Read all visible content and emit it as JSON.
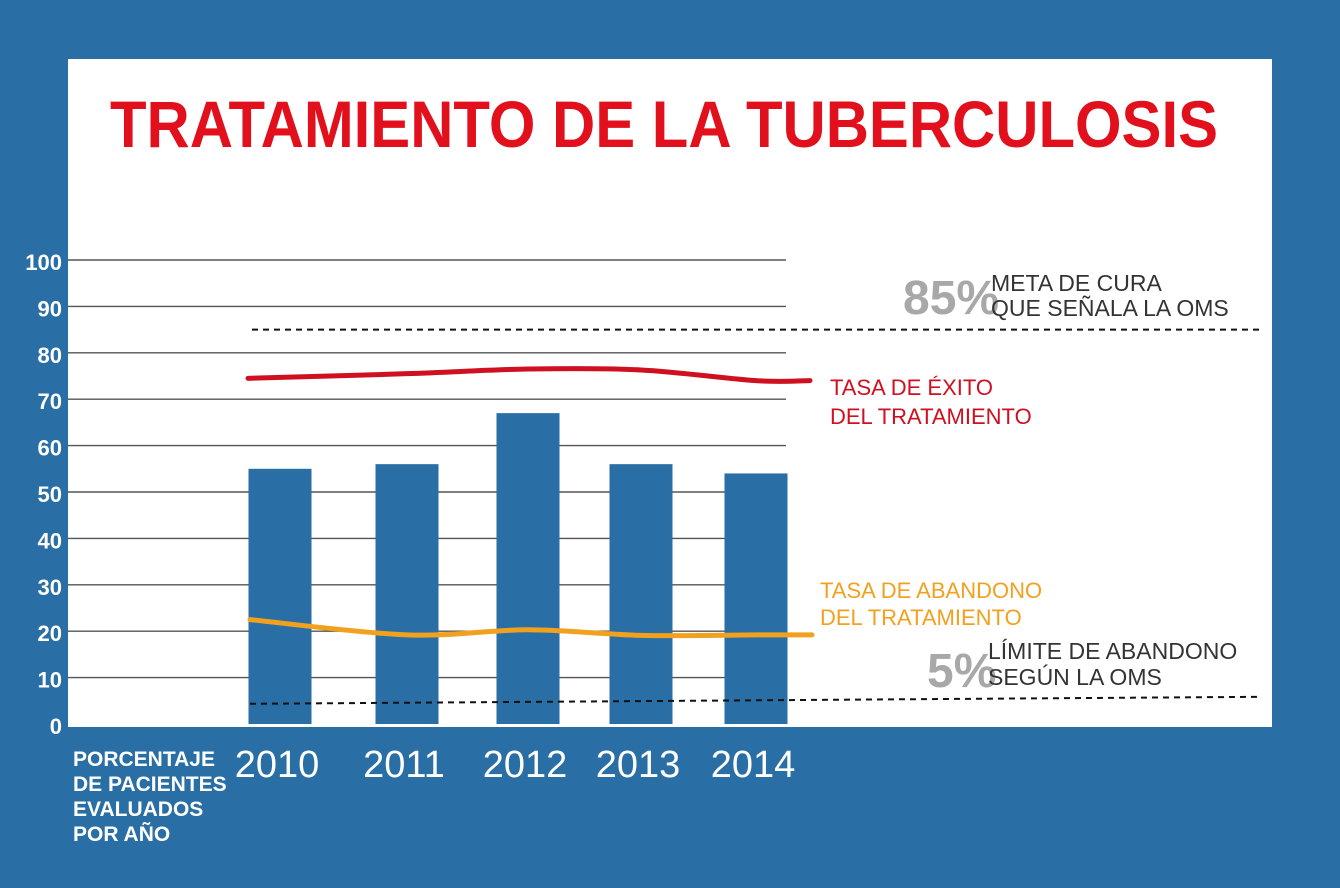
{
  "colors": {
    "background": "#2a6ea6",
    "panel": "#ffffff",
    "title": "#e1101c",
    "bar": "#2a6ea6",
    "success_line": "#cf1020",
    "abandon_line": "#f2a11f",
    "gridline": "#555555",
    "reference_line": "#111111",
    "reference_big": "#a8a8a8",
    "reference_text": "#333333",
    "axis_text": "#ffffff"
  },
  "chart_data": {
    "type": "bar",
    "title": "TRATAMIENTO DE LA TUBERCULOSIS",
    "ylabel_lines": [
      "PORCENTAJE",
      "DE PACIENTES",
      "EVALUADOS",
      "POR AÑO"
    ],
    "categories": [
      "2010",
      "2011",
      "2012",
      "2013",
      "2014"
    ],
    "values": [
      55,
      56,
      67,
      56,
      54
    ],
    "yticks": [
      "0",
      "10",
      "20",
      "30",
      "40",
      "50",
      "60",
      "70",
      "80",
      "90",
      "100"
    ],
    "ylim": [
      0,
      100
    ],
    "grid": true,
    "lines": [
      {
        "label_lines": [
          "TASA DE ÉXITO",
          "DEL TRATAMIENTO"
        ],
        "values": [
          74.5,
          75.5,
          76.5,
          76.3,
          74
        ]
      },
      {
        "label_lines": [
          "TASA DE ABANDONO",
          "DEL TRATAMIENTO"
        ],
        "values": [
          22.5,
          19.2,
          20.3,
          19.1,
          19.2
        ]
      }
    ],
    "reference_lines": [
      {
        "value": 85,
        "big": "85%",
        "text_lines": [
          "META DE CURA",
          "QUE SEÑALA LA OMS"
        ]
      },
      {
        "value": 5,
        "big": "5%",
        "text_lines": [
          "LÍMITE DE ABANDONO",
          "SEGÚN LA OMS"
        ]
      }
    ]
  }
}
